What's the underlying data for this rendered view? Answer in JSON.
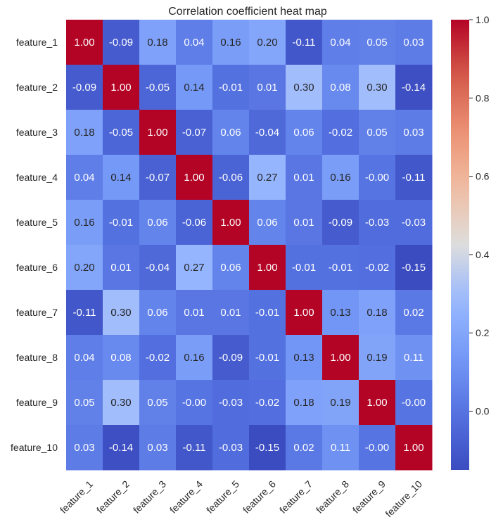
{
  "chart_data": {
    "type": "heatmap",
    "title": "Correlation coefficient heat map",
    "xlabel": "",
    "ylabel": "",
    "colormap": "coolwarm",
    "row_labels": [
      "feature_1",
      "feature_2",
      "feature_3",
      "feature_4",
      "feature_5",
      "feature_6",
      "feature_7",
      "feature_8",
      "feature_9",
      "feature_10"
    ],
    "col_labels": [
      "feature_1",
      "feature_2",
      "feature_3",
      "feature_4",
      "feature_5",
      "feature_6",
      "feature_7",
      "feature_8",
      "feature_9",
      "feature_10"
    ],
    "values": [
      [
        1.0,
        -0.09,
        0.18,
        0.04,
        0.16,
        0.2,
        -0.11,
        0.04,
        0.05,
        0.03
      ],
      [
        -0.09,
        1.0,
        -0.05,
        0.14,
        -0.01,
        0.01,
        0.3,
        0.08,
        0.3,
        -0.14
      ],
      [
        0.18,
        -0.05,
        1.0,
        -0.07,
        0.06,
        -0.04,
        0.06,
        -0.02,
        0.05,
        0.03
      ],
      [
        0.04,
        0.14,
        -0.07,
        1.0,
        -0.06,
        0.27,
        0.01,
        0.16,
        -0.0,
        -0.11
      ],
      [
        0.16,
        -0.01,
        0.06,
        -0.06,
        1.0,
        0.06,
        0.01,
        -0.09,
        -0.03,
        -0.03
      ],
      [
        0.2,
        0.01,
        -0.04,
        0.27,
        0.06,
        1.0,
        -0.01,
        -0.01,
        -0.02,
        -0.15
      ],
      [
        -0.11,
        0.3,
        0.06,
        0.01,
        0.01,
        -0.01,
        1.0,
        0.13,
        0.18,
        0.02
      ],
      [
        0.04,
        0.08,
        -0.02,
        0.16,
        -0.09,
        -0.01,
        0.13,
        1.0,
        0.19,
        0.11
      ],
      [
        0.05,
        0.3,
        0.05,
        -0.0,
        -0.03,
        -0.02,
        0.18,
        0.19,
        1.0,
        -0.0
      ],
      [
        0.03,
        -0.14,
        0.03,
        -0.11,
        -0.03,
        -0.15,
        0.02,
        0.11,
        -0.0,
        1.0
      ]
    ],
    "annotation_labels": [
      [
        "1.00",
        "-0.09",
        "0.18",
        "0.04",
        "0.16",
        "0.20",
        "-0.11",
        "0.04",
        "0.05",
        "0.03"
      ],
      [
        "-0.09",
        "1.00",
        "-0.05",
        "0.14",
        "-0.01",
        "0.01",
        "0.30",
        "0.08",
        "0.30",
        "-0.14"
      ],
      [
        "0.18",
        "-0.05",
        "1.00",
        "-0.07",
        "0.06",
        "-0.04",
        "0.06",
        "-0.02",
        "0.05",
        "0.03"
      ],
      [
        "0.04",
        "0.14",
        "-0.07",
        "1.00",
        "-0.06",
        "0.27",
        "0.01",
        "0.16",
        "-0.00",
        "-0.11"
      ],
      [
        "0.16",
        "-0.01",
        "0.06",
        "-0.06",
        "1.00",
        "0.06",
        "0.01",
        "-0.09",
        "-0.03",
        "-0.03"
      ],
      [
        "0.20",
        "0.01",
        "-0.04",
        "0.27",
        "0.06",
        "1.00",
        "-0.01",
        "-0.01",
        "-0.02",
        "-0.15"
      ],
      [
        "-0.11",
        "0.30",
        "0.06",
        "0.01",
        "0.01",
        "-0.01",
        "1.00",
        "0.13",
        "0.18",
        "0.02"
      ],
      [
        "0.04",
        "0.08",
        "-0.02",
        "0.16",
        "-0.09",
        "-0.01",
        "0.13",
        "1.00",
        "0.19",
        "0.11"
      ],
      [
        "0.05",
        "0.30",
        "0.05",
        "-0.00",
        "-0.03",
        "-0.02",
        "0.18",
        "0.19",
        "1.00",
        "-0.00"
      ],
      [
        "0.03",
        "-0.14",
        "0.03",
        "-0.11",
        "-0.03",
        "-0.15",
        "0.02",
        "0.11",
        "-0.00",
        "1.00"
      ]
    ],
    "colorbar": {
      "range": [
        -0.15,
        1.0
      ],
      "ticks": [
        0.0,
        0.2,
        0.4,
        0.6,
        0.8,
        1.0
      ],
      "tick_labels": [
        "0.0",
        "0.2",
        "0.4",
        "0.6",
        "0.8",
        "1.0"
      ]
    },
    "grid": false,
    "legend": "colorbar-right"
  }
}
